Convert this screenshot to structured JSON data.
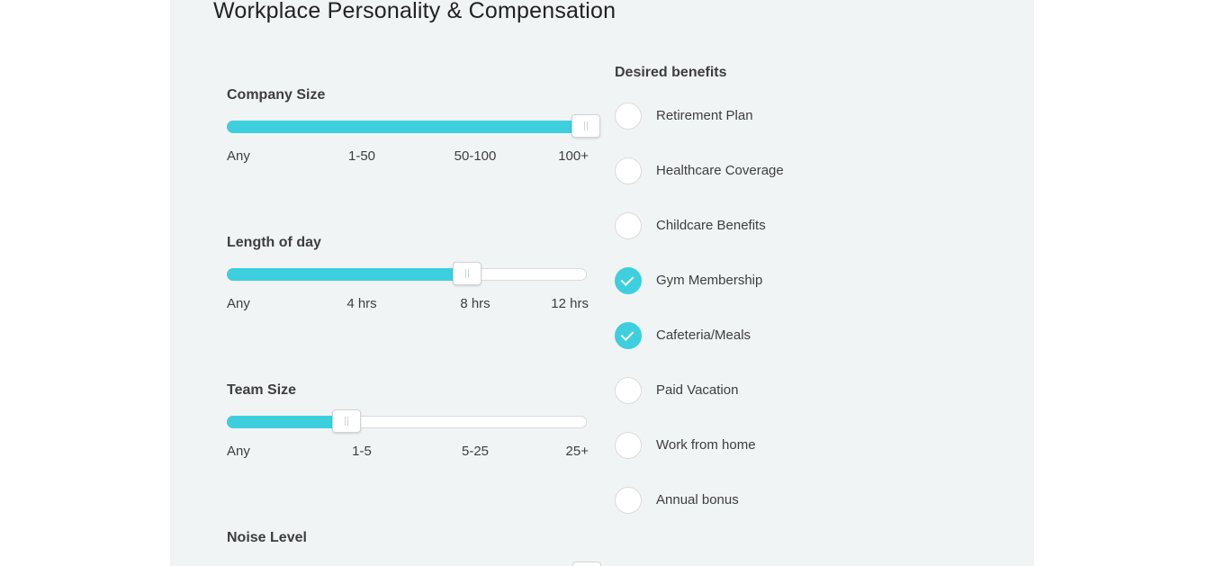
{
  "section": {
    "title": "Workplace Personality & Compensation"
  },
  "sliders": {
    "company_size": {
      "label": "Company Size",
      "ticks": [
        "Any",
        "1-50",
        "50-100",
        "100+"
      ],
      "selected": "100+",
      "selected_index": 3
    },
    "length_of_day": {
      "label": "Length of day",
      "ticks": [
        "Any",
        "4 hrs",
        "8 hrs",
        "12 hrs"
      ],
      "selected": "8 hrs",
      "selected_index": 2
    },
    "team_size": {
      "label": "Team Size",
      "ticks": [
        "Any",
        "1-5",
        "5-25",
        "25+"
      ],
      "selected": "1-5",
      "selected_index": 1
    },
    "noise_level": {
      "label": "Noise Level"
    }
  },
  "benefits": {
    "title": "Desired benefits",
    "items": [
      {
        "label": "Retirement Plan",
        "checked": false
      },
      {
        "label": "Healthcare Coverage",
        "checked": false
      },
      {
        "label": "Childcare Benefits",
        "checked": false
      },
      {
        "label": "Gym Membership",
        "checked": true
      },
      {
        "label": "Cafeteria/Meals",
        "checked": true
      },
      {
        "label": "Paid Vacation",
        "checked": false
      },
      {
        "label": "Work from home",
        "checked": false
      },
      {
        "label": "Annual bonus",
        "checked": false
      }
    ]
  },
  "colors": {
    "accent": "#3ecfdf",
    "panel_background": "#f1f4f5"
  }
}
